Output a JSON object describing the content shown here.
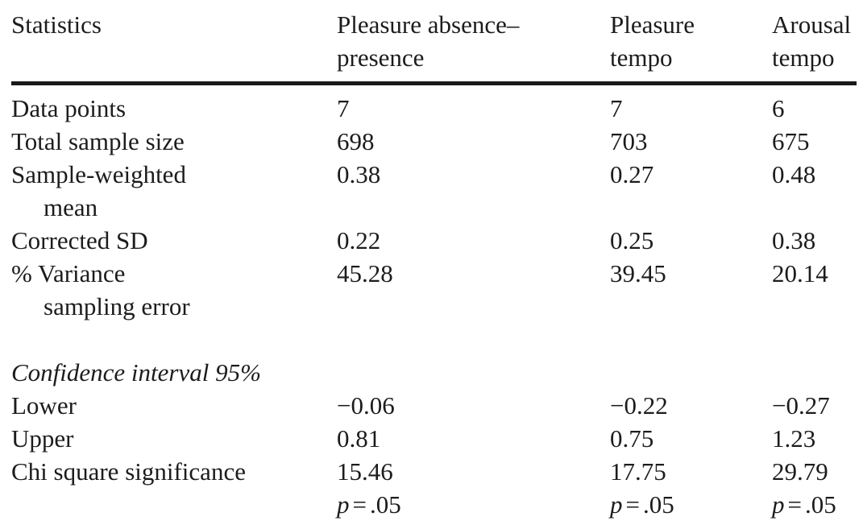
{
  "page": {
    "background": "#ffffff",
    "text_color": "#1c1c1c",
    "rule_color": "#1a1a1a"
  },
  "table": {
    "columns": [
      {
        "id": "statistics",
        "lines": [
          "Statistics"
        ]
      },
      {
        "id": "pleasure-absence-presence",
        "lines": [
          "Pleasure absence–",
          "presence"
        ]
      },
      {
        "id": "pleasure-tempo",
        "lines": [
          "Pleasure",
          "tempo"
        ]
      },
      {
        "id": "arousal-tempo",
        "lines": [
          "Arousal",
          "tempo"
        ]
      }
    ],
    "sections": [
      {
        "title": null,
        "rows": [
          {
            "label": [
              "Data points"
            ],
            "values": [
              "7",
              "7",
              "6"
            ]
          },
          {
            "label": [
              "Total sample size"
            ],
            "values": [
              "698",
              "703",
              "675"
            ]
          },
          {
            "label": [
              "Sample-weighted",
              "mean"
            ],
            "values": [
              "0.38",
              "0.27",
              "0.48"
            ]
          },
          {
            "label": [
              "Corrected SD"
            ],
            "values": [
              "0.22",
              "0.25",
              "0.38"
            ]
          },
          {
            "label": [
              "% Variance",
              "sampling error"
            ],
            "values": [
              "45.28",
              "39.45",
              "20.14"
            ]
          }
        ]
      },
      {
        "title": "Confidence interval 95%",
        "rows": [
          {
            "label": [
              "Lower"
            ],
            "values": [
              "−0.06",
              "−0.22",
              "−0.27"
            ]
          },
          {
            "label": [
              "Upper"
            ],
            "values": [
              "0.81",
              "0.75",
              "1.23"
            ]
          },
          {
            "label": [
              "Chi square significance"
            ],
            "values": [
              "15.46",
              "17.75",
              "29.79"
            ]
          },
          {
            "label": [],
            "values": [
              {
                "var": "p",
                "eq": "=",
                "val": ".05"
              },
              {
                "var": "p",
                "eq": "=",
                "val": ".05"
              },
              {
                "var": "p",
                "eq": "=",
                "val": ".05"
              }
            ]
          }
        ]
      }
    ]
  }
}
